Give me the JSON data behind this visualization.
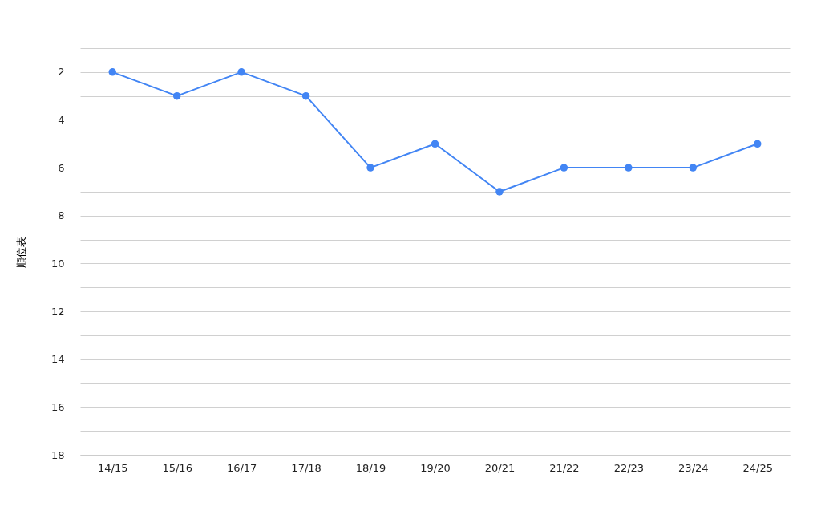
{
  "chart_data": {
    "type": "line",
    "ylabel": "順位表",
    "categories": [
      "14/15",
      "15/16",
      "16/17",
      "17/18",
      "18/19",
      "19/20",
      "20/21",
      "21/22",
      "22/23",
      "23/24",
      "24/25"
    ],
    "series": [
      {
        "color": "#4285f4",
        "values": [
          2,
          3,
          2,
          3,
          6,
          5,
          7,
          6,
          6,
          6,
          5
        ]
      }
    ],
    "ylim": [
      18,
      1
    ],
    "yticks": [
      {
        "value": 1,
        "label": null
      },
      2,
      {
        "value": 3,
        "label": null
      },
      4,
      {
        "value": 5,
        "label": null
      },
      6,
      {
        "value": 7,
        "label": null
      },
      8,
      {
        "value": 9,
        "label": null
      },
      10,
      {
        "value": 11,
        "label": null
      },
      12,
      {
        "value": 13,
        "label": null
      },
      14,
      {
        "value": 15,
        "label": null
      },
      16,
      {
        "value": 17,
        "label": null
      },
      18
    ],
    "grid": "y",
    "marker": "circle",
    "line_style": "solid"
  }
}
